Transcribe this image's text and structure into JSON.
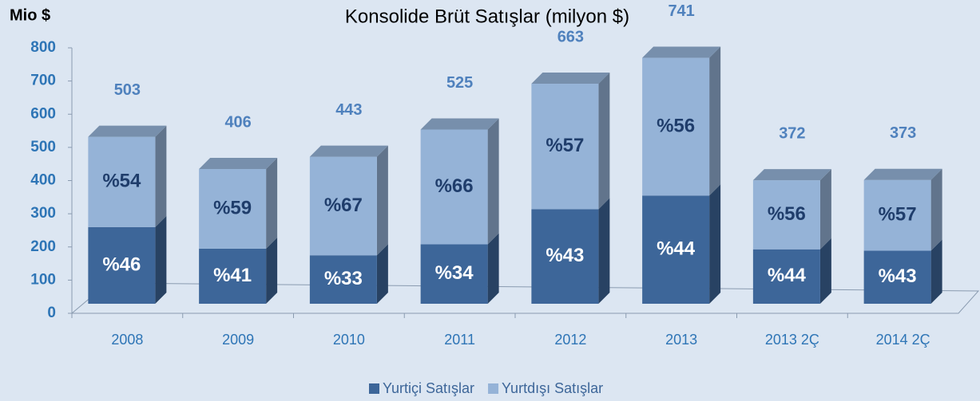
{
  "chart_data": {
    "type": "bar3d_stacked",
    "title": "Konsolide Brüt Satışlar (milyon $)",
    "y_label": "Mio $",
    "categories": [
      "2008",
      "2009",
      "2010",
      "2011",
      "2012",
      "2013",
      "2013 2Ç",
      "2014 2Ç"
    ],
    "series": [
      {
        "name": "Yurtiçi Satışlar",
        "color": "#3d6699",
        "values": [
          231,
          166,
          146,
          179,
          285,
          326,
          164,
          160
        ],
        "share_labels": [
          "%46",
          "%41",
          "%33",
          "%34",
          "%43",
          "%44",
          "%44",
          "%43"
        ],
        "label_color": "#ffffff"
      },
      {
        "name": "Yurtdışı Satışlar",
        "color": "#95b3d7",
        "values": [
          272,
          240,
          297,
          346,
          378,
          415,
          208,
          213
        ],
        "share_labels": [
          "%54",
          "%59",
          "%67",
          "%66",
          "%57",
          "%56",
          "%56",
          "%57"
        ],
        "label_color": "#1f3d6b"
      }
    ],
    "totals": [
      503,
      406,
      443,
      525,
      663,
      741,
      372,
      373
    ],
    "ylim": [
      0,
      800
    ],
    "yticks": [
      0,
      100,
      200,
      300,
      400,
      500,
      600,
      700,
      800
    ]
  }
}
